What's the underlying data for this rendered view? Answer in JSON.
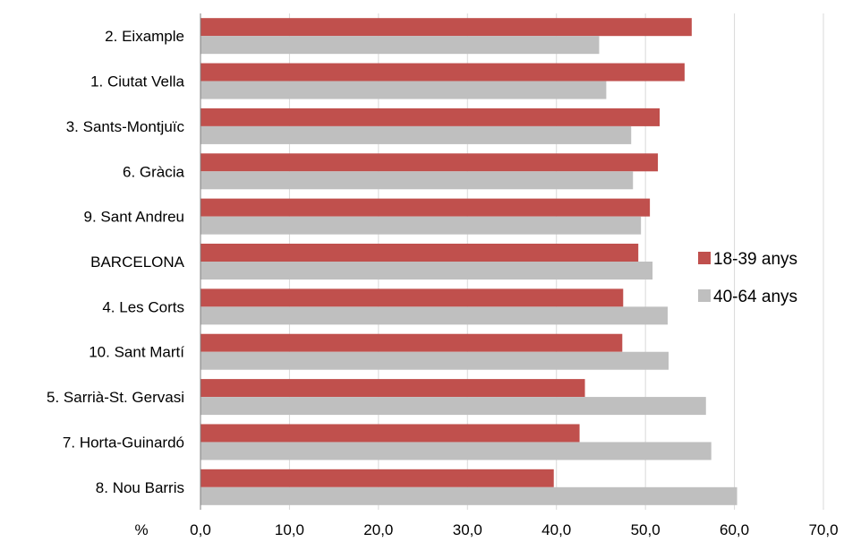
{
  "chart_data": {
    "type": "bar",
    "orientation": "horizontal",
    "title": "",
    "xlabel": "%",
    "ylabel": "",
    "xlim": [
      0,
      70
    ],
    "xticks": [
      "0,0",
      "10,0",
      "20,0",
      "30,0",
      "40,0",
      "50,0",
      "60,0",
      "70,0"
    ],
    "grid": true,
    "legend_position": "right",
    "categories": [
      "2. Eixample",
      "1. Ciutat Vella",
      "3. Sants-Montjuïc",
      "6. Gràcia",
      "9. Sant Andreu",
      "BARCELONA",
      "4. Les Corts",
      "10. Sant Martí",
      "5. Sarrià-St. Gervasi",
      "7. Horta-Guinardó",
      "8. Nou Barris"
    ],
    "series": [
      {
        "name": "18-39 anys",
        "color": "#C0504D",
        "values": [
          55.2,
          54.4,
          51.6,
          51.4,
          50.5,
          49.2,
          47.5,
          47.4,
          43.2,
          42.6,
          39.7
        ]
      },
      {
        "name": "40-64 anys",
        "color": "#BFBFBF",
        "values": [
          44.8,
          45.6,
          48.4,
          48.6,
          49.5,
          50.8,
          52.5,
          52.6,
          56.8,
          57.4,
          60.3
        ]
      }
    ]
  }
}
